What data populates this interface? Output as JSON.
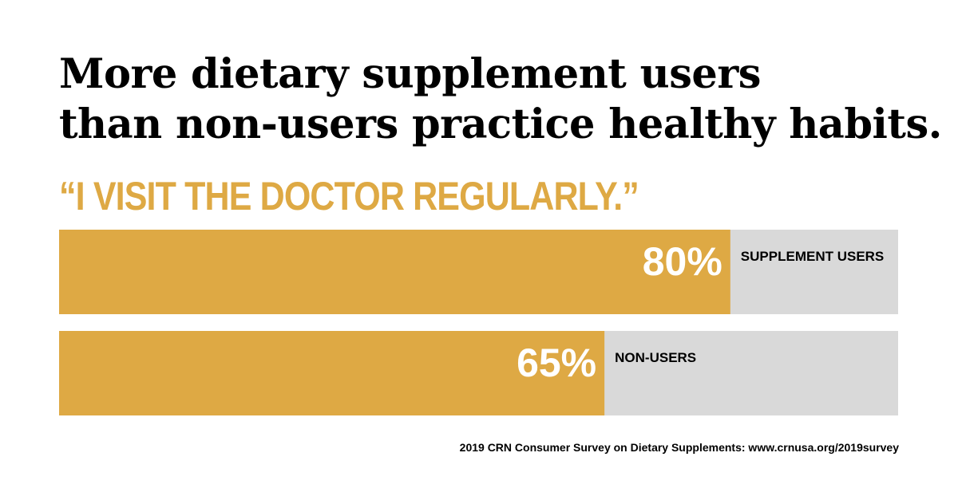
{
  "headline": {
    "line1": "More dietary supplement users",
    "line2": "than non-users practice healthy habits."
  },
  "quote": "“I VISIT THE DOCTOR REGULARLY.”",
  "source": "2019 CRN Consumer Survey on Dietary Supplements: www.crnusa.org/2019survey",
  "colors": {
    "bar_fill": "#dea944",
    "bar_track": "#d9d9d9",
    "value_text": "#ffffff",
    "label_text": "#000000"
  },
  "chart_data": {
    "type": "bar",
    "orientation": "horizontal",
    "title": "“I VISIT THE DOCTOR REGULARLY.”",
    "categories": [
      "SUPPLEMENT USERS",
      "NON-USERS"
    ],
    "values": [
      80,
      65
    ],
    "value_labels": [
      "80%",
      "65%"
    ],
    "unit": "%",
    "xlim": [
      0,
      100
    ],
    "grid": false,
    "legend": "none"
  }
}
